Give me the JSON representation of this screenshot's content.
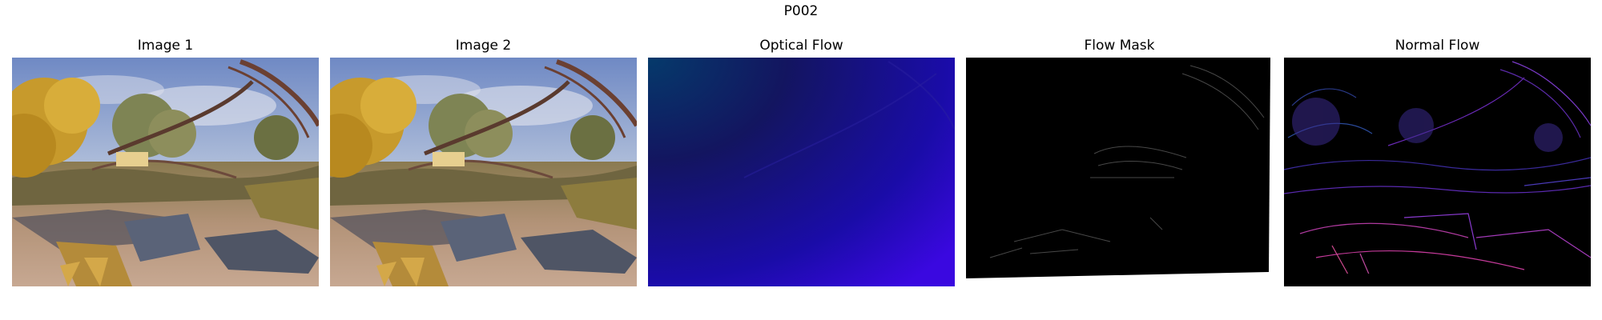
{
  "figure": {
    "title": "P002"
  },
  "panels": [
    {
      "title": "Image 1",
      "kind": "scene-photo"
    },
    {
      "title": "Image 2",
      "kind": "scene-photo"
    },
    {
      "title": "Optical Flow",
      "kind": "flow-visualization"
    },
    {
      "title": "Flow Mask",
      "kind": "binary-mask"
    },
    {
      "title": "Normal Flow",
      "kind": "edge-flow-visualization"
    }
  ]
}
